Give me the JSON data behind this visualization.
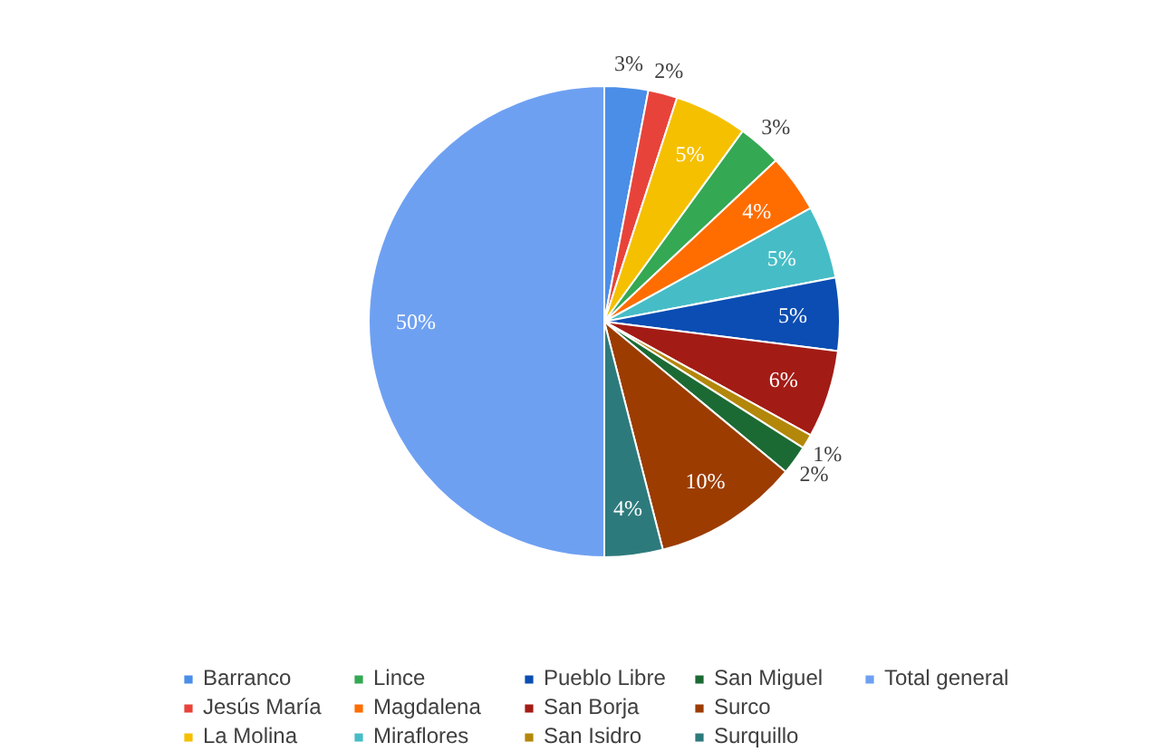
{
  "chart_data": {
    "type": "pie",
    "categories": [
      "Barranco",
      "Jesús María",
      "La Molina",
      "Lince",
      "Magdalena",
      "Miraflores",
      "Pueblo Libre",
      "San Borja",
      "San Isidro",
      "San Miguel",
      "Surco",
      "Surquillo",
      "Total general"
    ],
    "values": [
      3,
      2,
      5,
      3,
      4,
      5,
      5,
      6,
      1,
      2,
      10,
      4,
      50
    ],
    "value_labels": [
      "3%",
      "2%",
      "5%",
      "3%",
      "4%",
      "5%",
      "5%",
      "6%",
      "1%",
      "2%",
      "10%",
      "4%",
      "50%"
    ],
    "colors": [
      "#4a8ee8",
      "#e8433a",
      "#f5c000",
      "#34a853",
      "#ff6d01",
      "#46bdc6",
      "#0b4db3",
      "#a31b15",
      "#b38709",
      "#1b6a34",
      "#9c3c00",
      "#2d7a7c",
      "#6ea0f2"
    ],
    "legend": "bottom"
  }
}
